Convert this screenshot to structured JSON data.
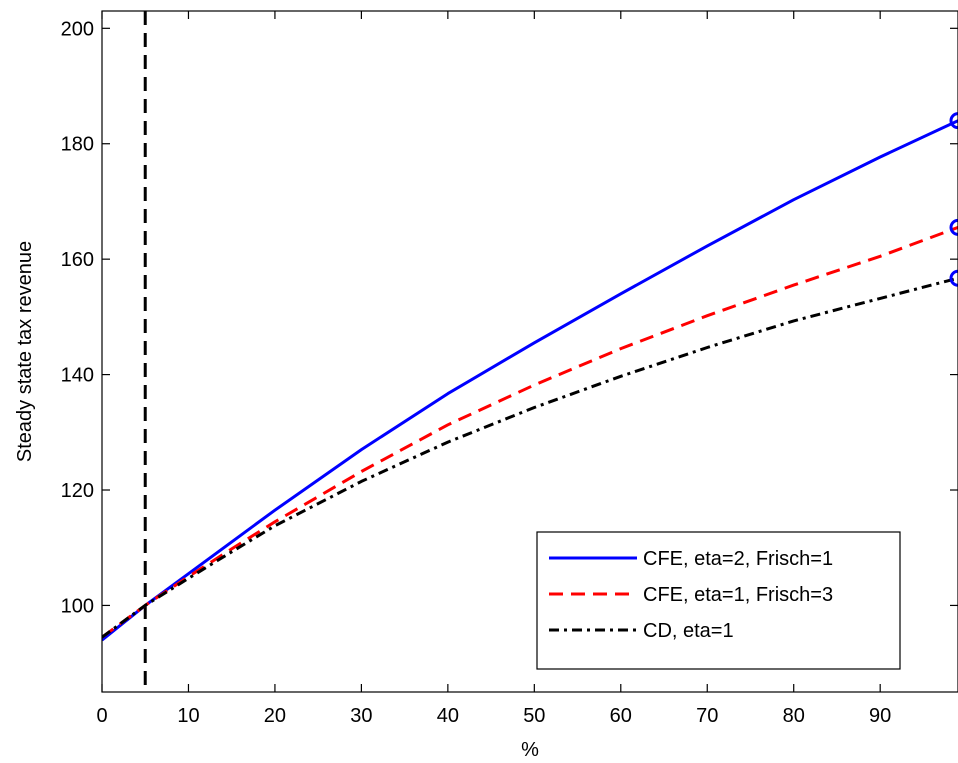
{
  "chart_data": {
    "type": "line",
    "title": "",
    "xlabel": "%",
    "ylabel": "Steady state tax revenue",
    "xlim": [
      0,
      99
    ],
    "ylim": [
      85,
      203
    ],
    "xticks": [
      0,
      10,
      20,
      30,
      40,
      50,
      60,
      70,
      80,
      90
    ],
    "yticks": [
      100,
      120,
      140,
      160,
      180,
      200
    ],
    "grid": false,
    "legend_position": "lower-right",
    "vertical_reference_line": {
      "x": 5,
      "style": "dashed",
      "color": "#000000"
    },
    "series": [
      {
        "name": "CFE, eta=2, Frisch=1",
        "color": "#0000ff",
        "style": "solid",
        "x": [
          0,
          5,
          10,
          15,
          20,
          30,
          40,
          50,
          60,
          70,
          80,
          90,
          99
        ],
        "y": [
          94,
          100,
          105.5,
          111,
          116.5,
          127,
          136.7,
          145.5,
          154,
          162.3,
          170.3,
          177.7,
          184
        ],
        "endpoint_marker": {
          "x": 99,
          "y": 184
        }
      },
      {
        "name": "CFE, eta=1, Frisch=3",
        "color": "#ff0000",
        "style": "dashed",
        "x": [
          0,
          5,
          10,
          15,
          20,
          30,
          40,
          50,
          60,
          70,
          80,
          90,
          99
        ],
        "y": [
          94.5,
          100,
          105,
          109.8,
          114.5,
          123.2,
          131.3,
          138.2,
          144.5,
          150.2,
          155.5,
          160.5,
          165.5
        ],
        "endpoint_marker": {
          "x": 99,
          "y": 165.5
        }
      },
      {
        "name": "CD, eta=1",
        "color": "#000000",
        "style": "dashdot",
        "x": [
          0,
          5,
          10,
          15,
          20,
          30,
          40,
          50,
          60,
          70,
          80,
          90,
          99
        ],
        "y": [
          94.5,
          100,
          104.7,
          109.3,
          113.8,
          121.5,
          128.3,
          134.3,
          139.7,
          144.7,
          149.3,
          153.2,
          156.7
        ],
        "endpoint_marker": {
          "x": 99,
          "y": 156.7
        }
      }
    ]
  }
}
